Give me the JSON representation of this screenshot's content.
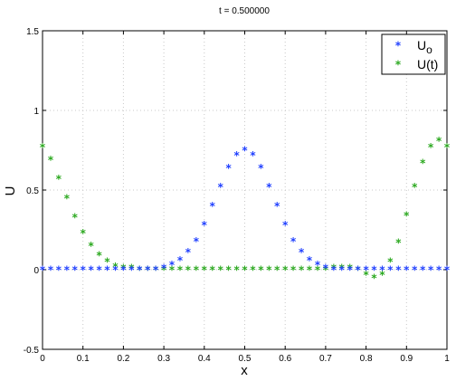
{
  "chart_data": {
    "type": "scatter",
    "title": "t = 0.500000",
    "xlabel": "x",
    "ylabel": "U",
    "xlim": [
      0,
      1
    ],
    "ylim": [
      -0.5,
      1.5
    ],
    "xticks": [
      "0",
      "0.1",
      "0.2",
      "0.3",
      "0.4",
      "0.5",
      "0.6",
      "0.7",
      "0.8",
      "0.9",
      "1"
    ],
    "yticks": [
      "-0.5",
      "0",
      "0.5",
      "1",
      "1.5"
    ],
    "grid": true,
    "legend_position": "top-right",
    "series": [
      {
        "name": "U_o",
        "color": "#1f3fff",
        "marker": "*",
        "x": [
          0,
          0.02,
          0.04,
          0.06,
          0.08,
          0.1,
          0.12,
          0.14,
          0.16,
          0.18,
          0.2,
          0.22,
          0.24,
          0.26,
          0.28,
          0.3,
          0.32,
          0.34,
          0.36,
          0.38,
          0.4,
          0.42,
          0.44,
          0.46,
          0.48,
          0.5,
          0.52,
          0.54,
          0.56,
          0.58,
          0.6,
          0.62,
          0.64,
          0.66,
          0.68,
          0.7,
          0.72,
          0.74,
          0.76,
          0.78,
          0.8,
          0.82,
          0.84,
          0.86,
          0.88,
          0.9,
          0.92,
          0.94,
          0.96,
          0.98,
          1.0
        ],
        "y": [
          0,
          0,
          0,
          0,
          0,
          0,
          0,
          0,
          0,
          0,
          0,
          0,
          0,
          0,
          0,
          0.01,
          0.03,
          0.06,
          0.11,
          0.18,
          0.28,
          0.4,
          0.52,
          0.64,
          0.72,
          0.75,
          0.72,
          0.64,
          0.52,
          0.4,
          0.28,
          0.18,
          0.11,
          0.06,
          0.03,
          0.01,
          0,
          0,
          0,
          0,
          0,
          0,
          0,
          0,
          0,
          0,
          0,
          0,
          0,
          0,
          0
        ]
      },
      {
        "name": "U(t)",
        "color": "#2aa81e",
        "marker": "*",
        "x": [
          0,
          0.02,
          0.04,
          0.06,
          0.08,
          0.1,
          0.12,
          0.14,
          0.16,
          0.18,
          0.2,
          0.22,
          0.24,
          0.26,
          0.28,
          0.3,
          0.32,
          0.34,
          0.36,
          0.38,
          0.4,
          0.42,
          0.44,
          0.46,
          0.48,
          0.5,
          0.52,
          0.54,
          0.56,
          0.58,
          0.6,
          0.62,
          0.64,
          0.66,
          0.68,
          0.7,
          0.72,
          0.74,
          0.76,
          0.78,
          0.8,
          0.82,
          0.84,
          0.86,
          0.88,
          0.9,
          0.92,
          0.94,
          0.96,
          0.98,
          1.0
        ],
        "y": [
          0.77,
          0.69,
          0.57,
          0.45,
          0.33,
          0.23,
          0.15,
          0.09,
          0.05,
          0.02,
          0.01,
          0.01,
          0,
          0,
          0,
          0,
          0,
          0,
          0,
          0,
          0,
          0,
          0,
          0,
          0,
          0,
          0,
          0,
          0,
          0,
          0,
          0,
          0,
          0,
          0,
          0,
          0.01,
          0.01,
          0.01,
          0,
          -0.03,
          -0.05,
          -0.03,
          0.05,
          0.17,
          0.34,
          0.52,
          0.67,
          0.77,
          0.81,
          0.77
        ]
      }
    ]
  }
}
